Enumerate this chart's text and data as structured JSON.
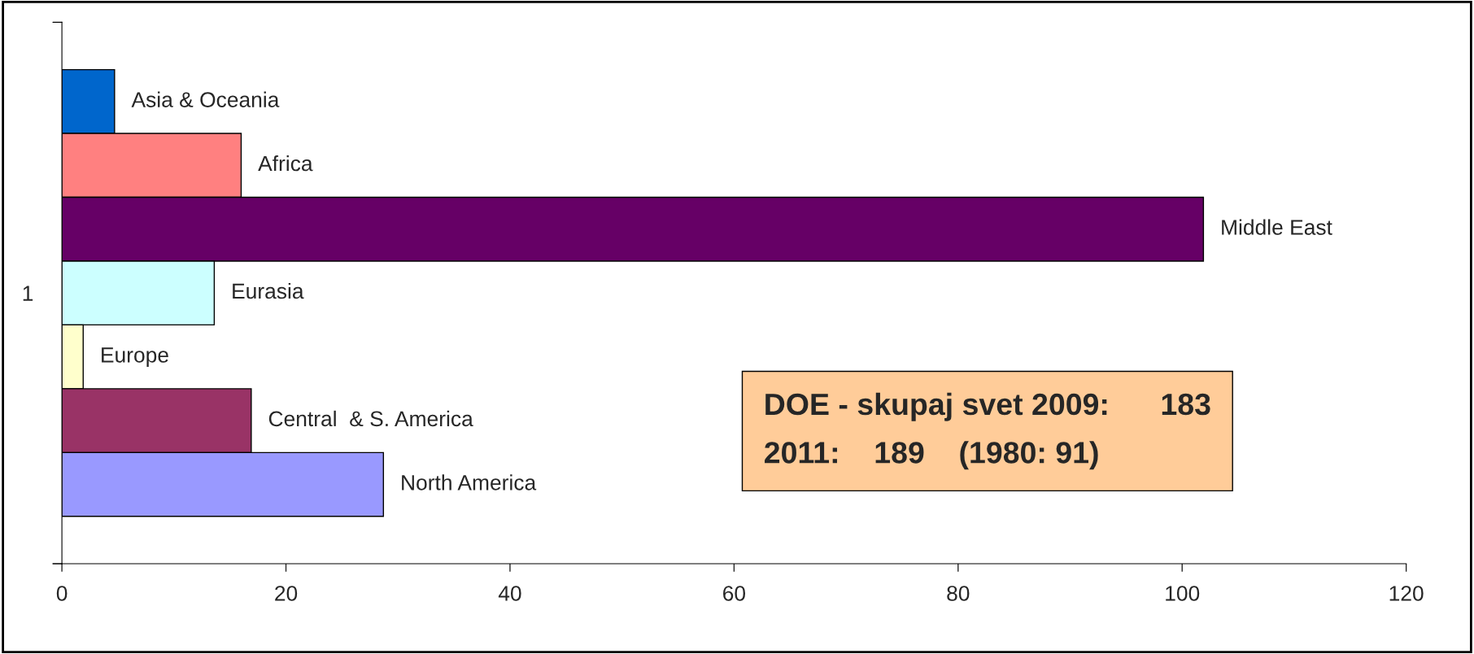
{
  "chart_data": {
    "type": "bar",
    "orientation": "horizontal",
    "categories": [
      "1"
    ],
    "series": [
      {
        "name": "Asia & Oceania",
        "color": "#0066cc",
        "values": [
          4.7
        ]
      },
      {
        "name": "Africa",
        "color": "#ff8080",
        "values": [
          16.0
        ]
      },
      {
        "name": "Middle East",
        "color": "#660066",
        "values": [
          101.9
        ]
      },
      {
        "name": "Eurasia",
        "color": "#ccffff",
        "values": [
          13.6
        ]
      },
      {
        "name": "Europe",
        "color": "#ffffcc",
        "values": [
          1.9
        ]
      },
      {
        "name": "Central  & S. America",
        "color": "#993366",
        "values": [
          16.9
        ]
      },
      {
        "name": "North America",
        "color": "#9999ff",
        "values": [
          28.7
        ]
      }
    ],
    "xlim": [
      0,
      120
    ],
    "xticks": [
      0,
      20,
      40,
      60,
      80,
      100,
      120
    ],
    "grid": false,
    "legend": false,
    "annotations": [
      "DOE - skupaj svet 2009:      183",
      "2011:    189    (1980: 91)"
    ]
  }
}
